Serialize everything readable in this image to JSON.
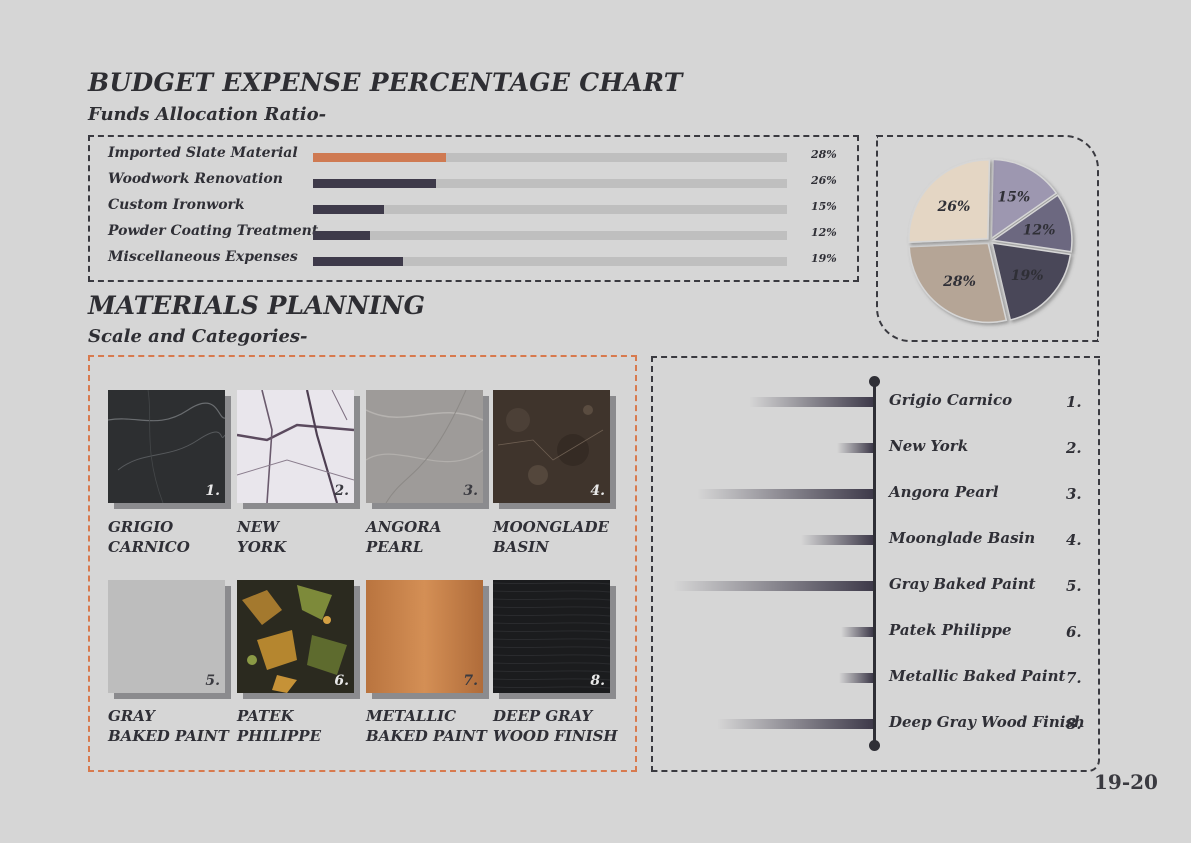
{
  "header": {
    "title": "BUDGET EXPENSE PERCENTAGE CHART",
    "subtitle": "Funds Allocation Ratio-"
  },
  "chart_data": [
    {
      "type": "bar",
      "orientation": "horizontal",
      "categories": [
        "Imported Slate Material",
        "Woodwork Renovation",
        "Custom Ironwork",
        "Powder Coating Treatment",
        "Miscellaneous Expenses"
      ],
      "values": [
        28,
        26,
        15,
        12,
        19
      ],
      "value_labels": [
        "28%",
        "26%",
        "15%",
        "12%",
        "19%"
      ],
      "bar_colors": [
        "#cf7a52",
        "#3e3a4a",
        "#3e3a4a",
        "#3e3a4a",
        "#3e3a4a"
      ],
      "track_color": "#bfbfbf",
      "xlim": [
        0,
        100
      ],
      "title": "",
      "xlabel": "",
      "ylabel": "",
      "grid": false
    },
    {
      "type": "pie",
      "labels": [
        "15%",
        "12%",
        "19%",
        "28%",
        "26%"
      ],
      "values": [
        15,
        12,
        19,
        28,
        26
      ],
      "colors": [
        "#9d97b0",
        "#6c6780",
        "#4a4658",
        "#b5a596",
        "#e4d6c4"
      ],
      "title": ""
    }
  ],
  "materials": {
    "title": "MATERIALS PLANNING",
    "subtitle": "Scale and Categories-",
    "items": [
      {
        "num": "1.",
        "line1": "GRIGIO",
        "line2": "CARNICO",
        "texture": "dark-marble",
        "num_color": "#e8e8e8"
      },
      {
        "num": "2.",
        "line1": "NEW",
        "line2": "YORK",
        "texture": "white-veined-marble",
        "num_color": "#3a3a40"
      },
      {
        "num": "3.",
        "line1": "ANGORA",
        "line2": "PEARL",
        "texture": "gray-marble",
        "num_color": "#3a3a40"
      },
      {
        "num": "4.",
        "line1": "MOONGLADE",
        "line2": "BASIN",
        "texture": "brown-stone",
        "num_color": "#e8e8e8"
      },
      {
        "num": "5.",
        "line1": "GRAY",
        "line2": "BAKED PAINT",
        "texture": "flat-gray",
        "num_color": "#3a3a40"
      },
      {
        "num": "6.",
        "line1": "PATEK",
        "line2": "PHILIPPE",
        "texture": "gold-green-stone",
        "num_color": "#e8e8e8"
      },
      {
        "num": "7.",
        "line1": "METALLIC",
        "line2": "BAKED PAINT",
        "texture": "copper-metal",
        "num_color": "#3a3a40"
      },
      {
        "num": "8.",
        "line1": "DEEP GRAY",
        "line2": "WOOD FINISH",
        "texture": "dark-wood",
        "num_color": "#e8e8e8"
      }
    ]
  },
  "scale": {
    "items": [
      {
        "label": "Grigio Carnico",
        "num": "1.",
        "relative_length": 0.62
      },
      {
        "label": "New York",
        "num": "2.",
        "relative_length": 0.18
      },
      {
        "label": "Angora Pearl",
        "num": "3.",
        "relative_length": 0.88
      },
      {
        "label": "Moonglade Basin",
        "num": "4.",
        "relative_length": 0.36
      },
      {
        "label": "Gray Baked Paint",
        "num": "5.",
        "relative_length": 1.0
      },
      {
        "label": "Patek Philippe",
        "num": "6.",
        "relative_length": 0.16
      },
      {
        "label": "Metallic Baked Paint",
        "num": "7.",
        "relative_length": 0.17
      },
      {
        "label": "Deep Gray Wood Finish",
        "num": "8.",
        "relative_length": 0.78
      }
    ],
    "bar_color": "#3e3a4a"
  },
  "page_number": "19-20"
}
